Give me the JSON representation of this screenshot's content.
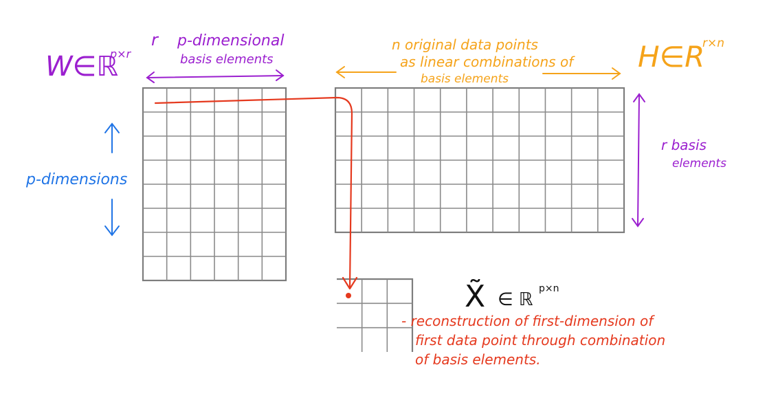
{
  "matrix_w": {
    "label": "W∈ℝ",
    "superscript": "p×r",
    "top_label_r": "r",
    "top_label_line1": "p-dimensional",
    "top_label_line2": "basis elements",
    "side_label": "p-dimensions",
    "rows": 8,
    "cols": 6
  },
  "matrix_h": {
    "label": "H∈R",
    "superscript": "r×n",
    "top_label_line1": "n  original data points",
    "top_label_line2": "as linear combinations of",
    "top_label_line3": "basis elements",
    "side_label_line1": "r  basis",
    "side_label_line2": "elements",
    "rows": 6,
    "cols": 11
  },
  "matrix_x": {
    "label": "X̃",
    "label_rest": "∈ ℝ",
    "superscript": "p×n",
    "rows": 3,
    "cols": 3
  },
  "annotation": {
    "line1": "- reconstruction of first-dimension of",
    "line2": "first data point through combination",
    "line3": "of basis elements."
  },
  "colors": {
    "purple": "#9b1fcf",
    "orange": "#f5a31a",
    "blue": "#1f74e6",
    "red": "#e5391e",
    "grid": "#8a8a8a"
  }
}
